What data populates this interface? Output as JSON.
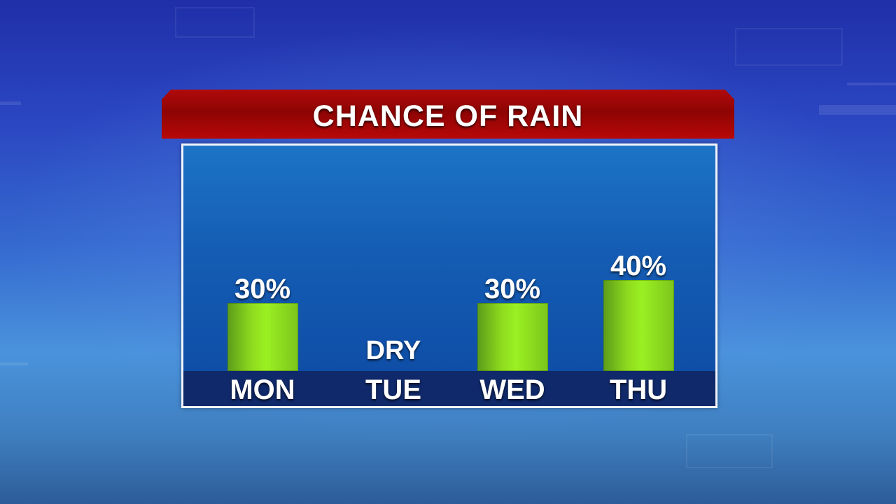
{
  "chart_data": {
    "type": "bar",
    "title": "CHANCE OF RAIN",
    "xlabel": "",
    "ylabel": "",
    "unit": "%",
    "categories": [
      "MON",
      "TUE",
      "WED",
      "THU"
    ],
    "values": [
      30,
      0,
      30,
      40
    ],
    "value_labels": [
      "30%",
      "DRY",
      "30%",
      "40%"
    ],
    "ylim": [
      0,
      100
    ],
    "grid": false,
    "legend": "none"
  },
  "colors": {
    "bar": "#8fdc1f",
    "title_banner": "#a80808",
    "panel": "#155db4",
    "day_strip": "#10296a"
  }
}
